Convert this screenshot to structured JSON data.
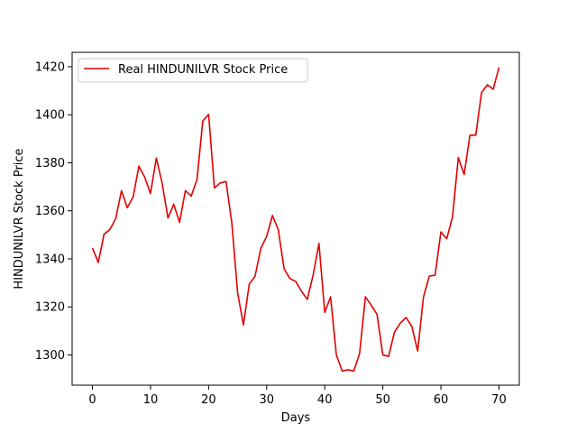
{
  "chart_data": {
    "type": "line",
    "title": "",
    "xlabel": "Days",
    "ylabel": "HINDUNILVR Stock Price",
    "xlim": [
      -3.5,
      73.5
    ],
    "ylim": [
      1287.4,
      1426.0
    ],
    "xticks": [
      0,
      10,
      20,
      30,
      40,
      50,
      60,
      70
    ],
    "yticks": [
      1300,
      1320,
      1340,
      1360,
      1380,
      1400,
      1420
    ],
    "grid": false,
    "legend": {
      "position": "top-left"
    },
    "series": [
      {
        "name": "Real HINDUNILVR Stock Price",
        "color": "#e00000",
        "x": [
          0,
          1,
          2,
          3,
          4,
          5,
          6,
          7,
          8,
          9,
          10,
          11,
          12,
          13,
          14,
          15,
          16,
          17,
          18,
          19,
          20,
          21,
          22,
          23,
          24,
          25,
          26,
          27,
          28,
          29,
          30,
          31,
          32,
          33,
          34,
          35,
          36,
          37,
          38,
          39,
          40,
          41,
          42,
          43,
          44,
          45,
          46,
          47,
          48,
          49,
          50,
          51,
          52,
          53,
          54,
          55,
          56,
          57,
          58,
          59,
          60,
          61,
          62,
          63,
          64,
          65,
          66,
          67,
          68,
          69,
          70
        ],
        "values": [
          1344.5,
          1338.5,
          1350.3,
          1352.2,
          1356.7,
          1368.4,
          1361.3,
          1365.7,
          1378.6,
          1374.0,
          1367.2,
          1382.0,
          1371.5,
          1357.0,
          1362.7,
          1355.2,
          1368.4,
          1366.1,
          1373.0,
          1397.4,
          1400.2,
          1369.5,
          1371.6,
          1372.2,
          1355.0,
          1325.8,
          1312.5,
          1329.5,
          1332.8,
          1344.4,
          1349.4,
          1358.1,
          1352.1,
          1335.9,
          1331.8,
          1330.6,
          1326.5,
          1323.1,
          1333.3,
          1346.4,
          1317.7,
          1324.2,
          1300.0,
          1293.3,
          1293.8,
          1293.3,
          1300.6,
          1324.2,
          1320.7,
          1316.9,
          1300.0,
          1299.4,
          1309.5,
          1313.2,
          1315.6,
          1311.9,
          1301.6,
          1324.1,
          1332.8,
          1333.2,
          1351.2,
          1348.4,
          1357.4,
          1382.2,
          1375.1,
          1391.5,
          1391.5,
          1409.2,
          1412.5,
          1410.6,
          1419.7
        ]
      }
    ]
  }
}
